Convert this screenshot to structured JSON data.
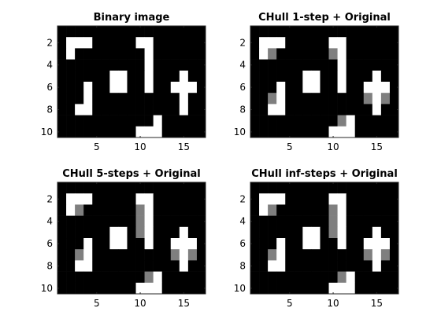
{
  "chart_data": [
    {
      "type": "heatmap",
      "title": "Binary image",
      "xlabel": "",
      "ylabel": "",
      "xlim": [
        0.5,
        17.5
      ],
      "ylim": [
        0.5,
        10.5
      ],
      "x_ticks": [
        5,
        10,
        15
      ],
      "y_ticks": [
        2,
        4,
        6,
        8,
        10
      ],
      "colormap": {
        "0": "#000000",
        "1": "#7f7f7f",
        "2": "#ffffff"
      },
      "grid": [
        [
          0,
          0,
          0,
          0,
          0,
          0,
          0,
          0,
          0,
          0,
          0,
          0,
          0,
          0,
          0,
          0,
          0
        ],
        [
          0,
          2,
          2,
          2,
          0,
          0,
          0,
          0,
          0,
          2,
          2,
          0,
          0,
          0,
          0,
          0,
          0
        ],
        [
          0,
          2,
          0,
          0,
          0,
          0,
          0,
          0,
          0,
          0,
          2,
          0,
          0,
          0,
          0,
          0,
          0
        ],
        [
          0,
          0,
          0,
          0,
          0,
          0,
          0,
          0,
          0,
          0,
          2,
          0,
          0,
          0,
          0,
          0,
          0
        ],
        [
          0,
          0,
          0,
          0,
          0,
          0,
          2,
          2,
          0,
          0,
          2,
          0,
          0,
          0,
          2,
          0,
          0
        ],
        [
          0,
          0,
          0,
          2,
          0,
          0,
          2,
          2,
          0,
          0,
          2,
          0,
          0,
          2,
          2,
          2,
          0
        ],
        [
          0,
          0,
          0,
          2,
          0,
          0,
          0,
          0,
          0,
          0,
          0,
          0,
          0,
          0,
          2,
          0,
          0
        ],
        [
          0,
          0,
          2,
          2,
          0,
          0,
          0,
          0,
          0,
          0,
          0,
          0,
          0,
          0,
          2,
          0,
          0
        ],
        [
          0,
          0,
          0,
          0,
          0,
          0,
          0,
          0,
          0,
          0,
          0,
          2,
          0,
          0,
          0,
          0,
          0
        ],
        [
          0,
          0,
          0,
          0,
          0,
          0,
          0,
          0,
          0,
          2,
          2,
          2,
          0,
          0,
          0,
          0,
          0
        ]
      ]
    },
    {
      "type": "heatmap",
      "title": "CHull 1-step + Original",
      "xlabel": "",
      "ylabel": "",
      "xlim": [
        0.5,
        17.5
      ],
      "ylim": [
        0.5,
        10.5
      ],
      "x_ticks": [
        5,
        10,
        15
      ],
      "y_ticks": [
        2,
        4,
        6,
        8,
        10
      ],
      "colormap": {
        "0": "#000000",
        "1": "#7f7f7f",
        "2": "#ffffff"
      },
      "grid": [
        [
          0,
          0,
          0,
          0,
          0,
          0,
          0,
          0,
          0,
          0,
          0,
          0,
          0,
          0,
          0,
          0,
          0
        ],
        [
          0,
          2,
          2,
          2,
          0,
          0,
          0,
          0,
          0,
          2,
          2,
          0,
          0,
          0,
          0,
          0,
          0
        ],
        [
          0,
          2,
          1,
          0,
          0,
          0,
          0,
          0,
          0,
          1,
          2,
          0,
          0,
          0,
          0,
          0,
          0
        ],
        [
          0,
          0,
          0,
          0,
          0,
          0,
          0,
          0,
          0,
          0,
          2,
          0,
          0,
          0,
          0,
          0,
          0
        ],
        [
          0,
          0,
          0,
          0,
          0,
          0,
          2,
          2,
          0,
          0,
          2,
          0,
          0,
          0,
          2,
          0,
          0
        ],
        [
          0,
          0,
          0,
          2,
          0,
          0,
          2,
          2,
          0,
          0,
          2,
          0,
          0,
          2,
          2,
          2,
          0
        ],
        [
          0,
          0,
          1,
          2,
          0,
          0,
          0,
          0,
          0,
          0,
          0,
          0,
          0,
          1,
          2,
          1,
          0
        ],
        [
          0,
          0,
          2,
          2,
          0,
          0,
          0,
          0,
          0,
          0,
          0,
          0,
          0,
          0,
          2,
          0,
          0
        ],
        [
          0,
          0,
          0,
          0,
          0,
          0,
          0,
          0,
          0,
          0,
          1,
          2,
          0,
          0,
          0,
          0,
          0
        ],
        [
          0,
          0,
          0,
          0,
          0,
          0,
          0,
          0,
          0,
          2,
          2,
          2,
          0,
          0,
          0,
          0,
          0
        ]
      ]
    },
    {
      "type": "heatmap",
      "title": "CHull 5-steps + Original",
      "xlabel": "",
      "ylabel": "",
      "xlim": [
        0.5,
        17.5
      ],
      "ylim": [
        0.5,
        10.5
      ],
      "x_ticks": [
        5,
        10,
        15
      ],
      "y_ticks": [
        2,
        4,
        6,
        8,
        10
      ],
      "colormap": {
        "0": "#000000",
        "1": "#7f7f7f",
        "2": "#ffffff"
      },
      "grid": [
        [
          0,
          0,
          0,
          0,
          0,
          0,
          0,
          0,
          0,
          0,
          0,
          0,
          0,
          0,
          0,
          0,
          0
        ],
        [
          0,
          2,
          2,
          2,
          0,
          0,
          0,
          0,
          0,
          2,
          2,
          0,
          0,
          0,
          0,
          0,
          0
        ],
        [
          0,
          2,
          1,
          0,
          0,
          0,
          0,
          0,
          0,
          1,
          2,
          0,
          0,
          0,
          0,
          0,
          0
        ],
        [
          0,
          0,
          0,
          0,
          0,
          0,
          0,
          0,
          0,
          1,
          2,
          0,
          0,
          0,
          0,
          0,
          0
        ],
        [
          0,
          0,
          0,
          0,
          0,
          0,
          2,
          2,
          0,
          1,
          2,
          0,
          0,
          0,
          2,
          0,
          0
        ],
        [
          0,
          0,
          0,
          2,
          0,
          0,
          2,
          2,
          0,
          0,
          2,
          0,
          0,
          2,
          2,
          2,
          0
        ],
        [
          0,
          0,
          1,
          2,
          0,
          0,
          0,
          0,
          0,
          0,
          0,
          0,
          0,
          1,
          2,
          1,
          0
        ],
        [
          0,
          0,
          2,
          2,
          0,
          0,
          0,
          0,
          0,
          0,
          0,
          0,
          0,
          0,
          2,
          0,
          0
        ],
        [
          0,
          0,
          0,
          0,
          0,
          0,
          0,
          0,
          0,
          0,
          1,
          2,
          0,
          0,
          0,
          0,
          0
        ],
        [
          0,
          0,
          0,
          0,
          0,
          0,
          0,
          0,
          0,
          2,
          2,
          2,
          0,
          0,
          0,
          0,
          0
        ]
      ]
    },
    {
      "type": "heatmap",
      "title": "CHull inf-steps + Original",
      "xlabel": "",
      "ylabel": "",
      "xlim": [
        0.5,
        17.5
      ],
      "ylim": [
        0.5,
        10.5
      ],
      "x_ticks": [
        5,
        10,
        15
      ],
      "y_ticks": [
        2,
        4,
        6,
        8,
        10
      ],
      "colormap": {
        "0": "#000000",
        "1": "#7f7f7f",
        "2": "#ffffff"
      },
      "grid": [
        [
          0,
          0,
          0,
          0,
          0,
          0,
          0,
          0,
          0,
          0,
          0,
          0,
          0,
          0,
          0,
          0,
          0
        ],
        [
          0,
          2,
          2,
          2,
          0,
          0,
          0,
          0,
          0,
          2,
          2,
          0,
          0,
          0,
          0,
          0,
          0
        ],
        [
          0,
          2,
          1,
          0,
          0,
          0,
          0,
          0,
          0,
          1,
          2,
          0,
          0,
          0,
          0,
          0,
          0
        ],
        [
          0,
          0,
          0,
          0,
          0,
          0,
          0,
          0,
          0,
          1,
          2,
          0,
          0,
          0,
          0,
          0,
          0
        ],
        [
          0,
          0,
          0,
          0,
          0,
          0,
          2,
          2,
          0,
          1,
          2,
          0,
          0,
          0,
          2,
          0,
          0
        ],
        [
          0,
          0,
          0,
          2,
          0,
          0,
          2,
          2,
          0,
          0,
          2,
          0,
          0,
          2,
          2,
          2,
          0
        ],
        [
          0,
          0,
          1,
          2,
          0,
          0,
          0,
          0,
          0,
          0,
          0,
          0,
          0,
          1,
          2,
          1,
          0
        ],
        [
          0,
          0,
          2,
          2,
          0,
          0,
          0,
          0,
          0,
          0,
          0,
          0,
          0,
          0,
          2,
          0,
          0
        ],
        [
          0,
          0,
          0,
          0,
          0,
          0,
          0,
          0,
          0,
          0,
          1,
          2,
          0,
          0,
          0,
          0,
          0
        ],
        [
          0,
          0,
          0,
          0,
          0,
          0,
          0,
          0,
          0,
          2,
          2,
          2,
          0,
          0,
          0,
          0,
          0
        ]
      ]
    }
  ]
}
